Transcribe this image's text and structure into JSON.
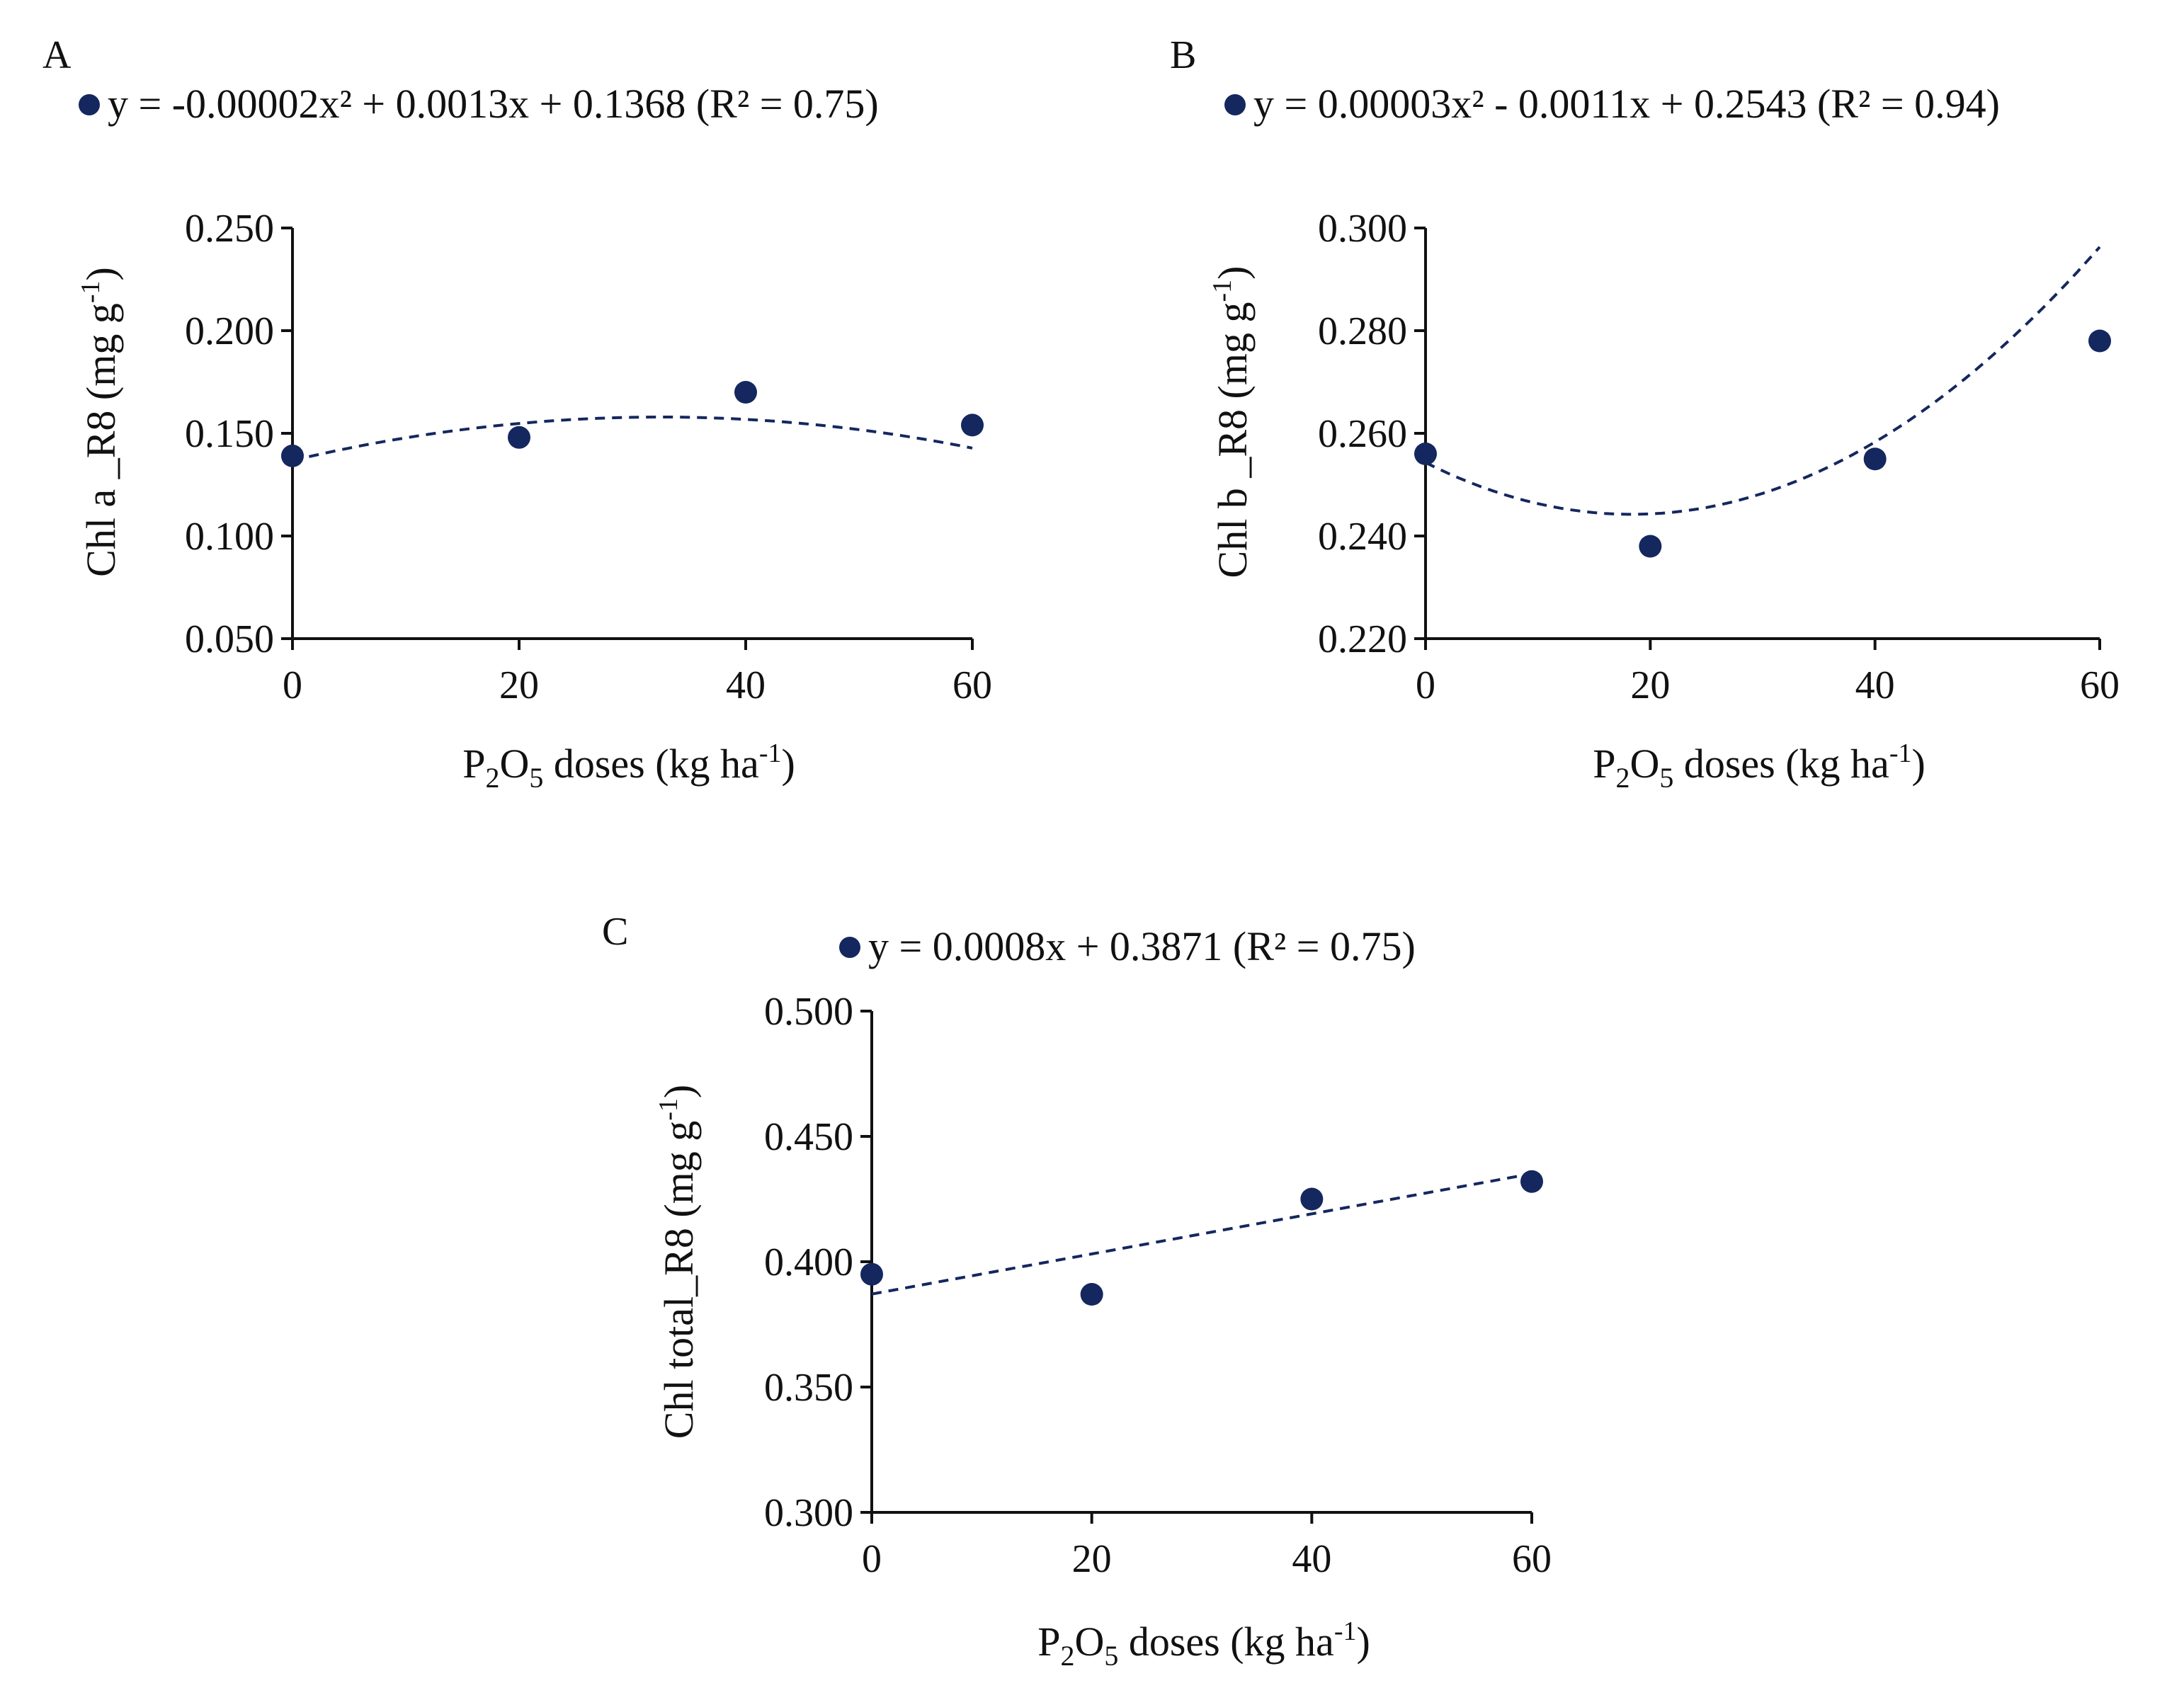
{
  "chart_data": [
    {
      "panel": "A",
      "type": "scatter",
      "legend": "y = -0.00002x² + 0.0013x + 0.1368 (R² = 0.75)",
      "trendline": {
        "kind": "quadratic",
        "coef": [
          -2e-05,
          0.0013,
          0.1368
        ],
        "style": "dashed"
      },
      "x": [
        0,
        20,
        40,
        60
      ],
      "y": [
        0.139,
        0.148,
        0.17,
        0.154
      ],
      "xlim": [
        0,
        60
      ],
      "ylim": [
        0.05,
        0.25
      ],
      "xticks": [
        "0",
        "20",
        "40",
        "60"
      ],
      "yticks": [
        "0.050",
        "0.100",
        "0.150",
        "0.200",
        "0.250"
      ],
      "xlabel": {
        "main": "P",
        "sub1": "2",
        "mid": "O",
        "sub2": "5",
        "rest": " doses (kg ha",
        "sup": "-1",
        "end": ")"
      },
      "ylabel": {
        "main": "Chl a _R8 (mg g",
        "sup": "-1",
        "end": ")"
      }
    },
    {
      "panel": "B",
      "type": "scatter",
      "legend": "y = 0.00003x² - 0.0011x + 0.2543 (R² = 0.94)",
      "trendline": {
        "kind": "quadratic",
        "coef": [
          3e-05,
          -0.0011,
          0.2543
        ],
        "style": "dashed"
      },
      "x": [
        0,
        20,
        40,
        60
      ],
      "y": [
        0.256,
        0.238,
        0.255,
        0.278
      ],
      "xlim": [
        0,
        60
      ],
      "ylim": [
        0.22,
        0.3
      ],
      "xticks": [
        "0",
        "20",
        "40",
        "60"
      ],
      "yticks": [
        "0.220",
        "0.240",
        "0.260",
        "0.280",
        "0.300"
      ],
      "xlabel": {
        "main": "P",
        "sub1": "2",
        "mid": "O",
        "sub2": "5",
        "rest": " doses (kg ha",
        "sup": "-1",
        "end": ")"
      },
      "ylabel": {
        "main": "Chl b _R8 (mg g",
        "sup": "-1",
        "end": ")"
      }
    },
    {
      "panel": "C",
      "type": "scatter",
      "legend": "y = 0.0008x + 0.3871 (R² = 0.75)",
      "trendline": {
        "kind": "linear",
        "coef": [
          0,
          0.0008,
          0.3871
        ],
        "style": "dashed"
      },
      "x": [
        0,
        20,
        40,
        60
      ],
      "y": [
        0.395,
        0.387,
        0.425,
        0.432
      ],
      "xlim": [
        0,
        60
      ],
      "ylim": [
        0.3,
        0.5
      ],
      "xticks": [
        "0",
        "20",
        "40",
        "60"
      ],
      "yticks": [
        "0.300",
        "0.350",
        "0.400",
        "0.450",
        "0.500"
      ],
      "xlabel": {
        "main": "P",
        "sub1": "2",
        "mid": "O",
        "sub2": "5",
        "rest": " doses (kg ha",
        "sup": "-1",
        "end": ")"
      },
      "ylabel": {
        "main": "Chl total_R8 (mg g",
        "sup": "-1",
        "end": ")"
      }
    }
  ],
  "colors": {
    "series": "#14275e",
    "axis": "#111111"
  }
}
